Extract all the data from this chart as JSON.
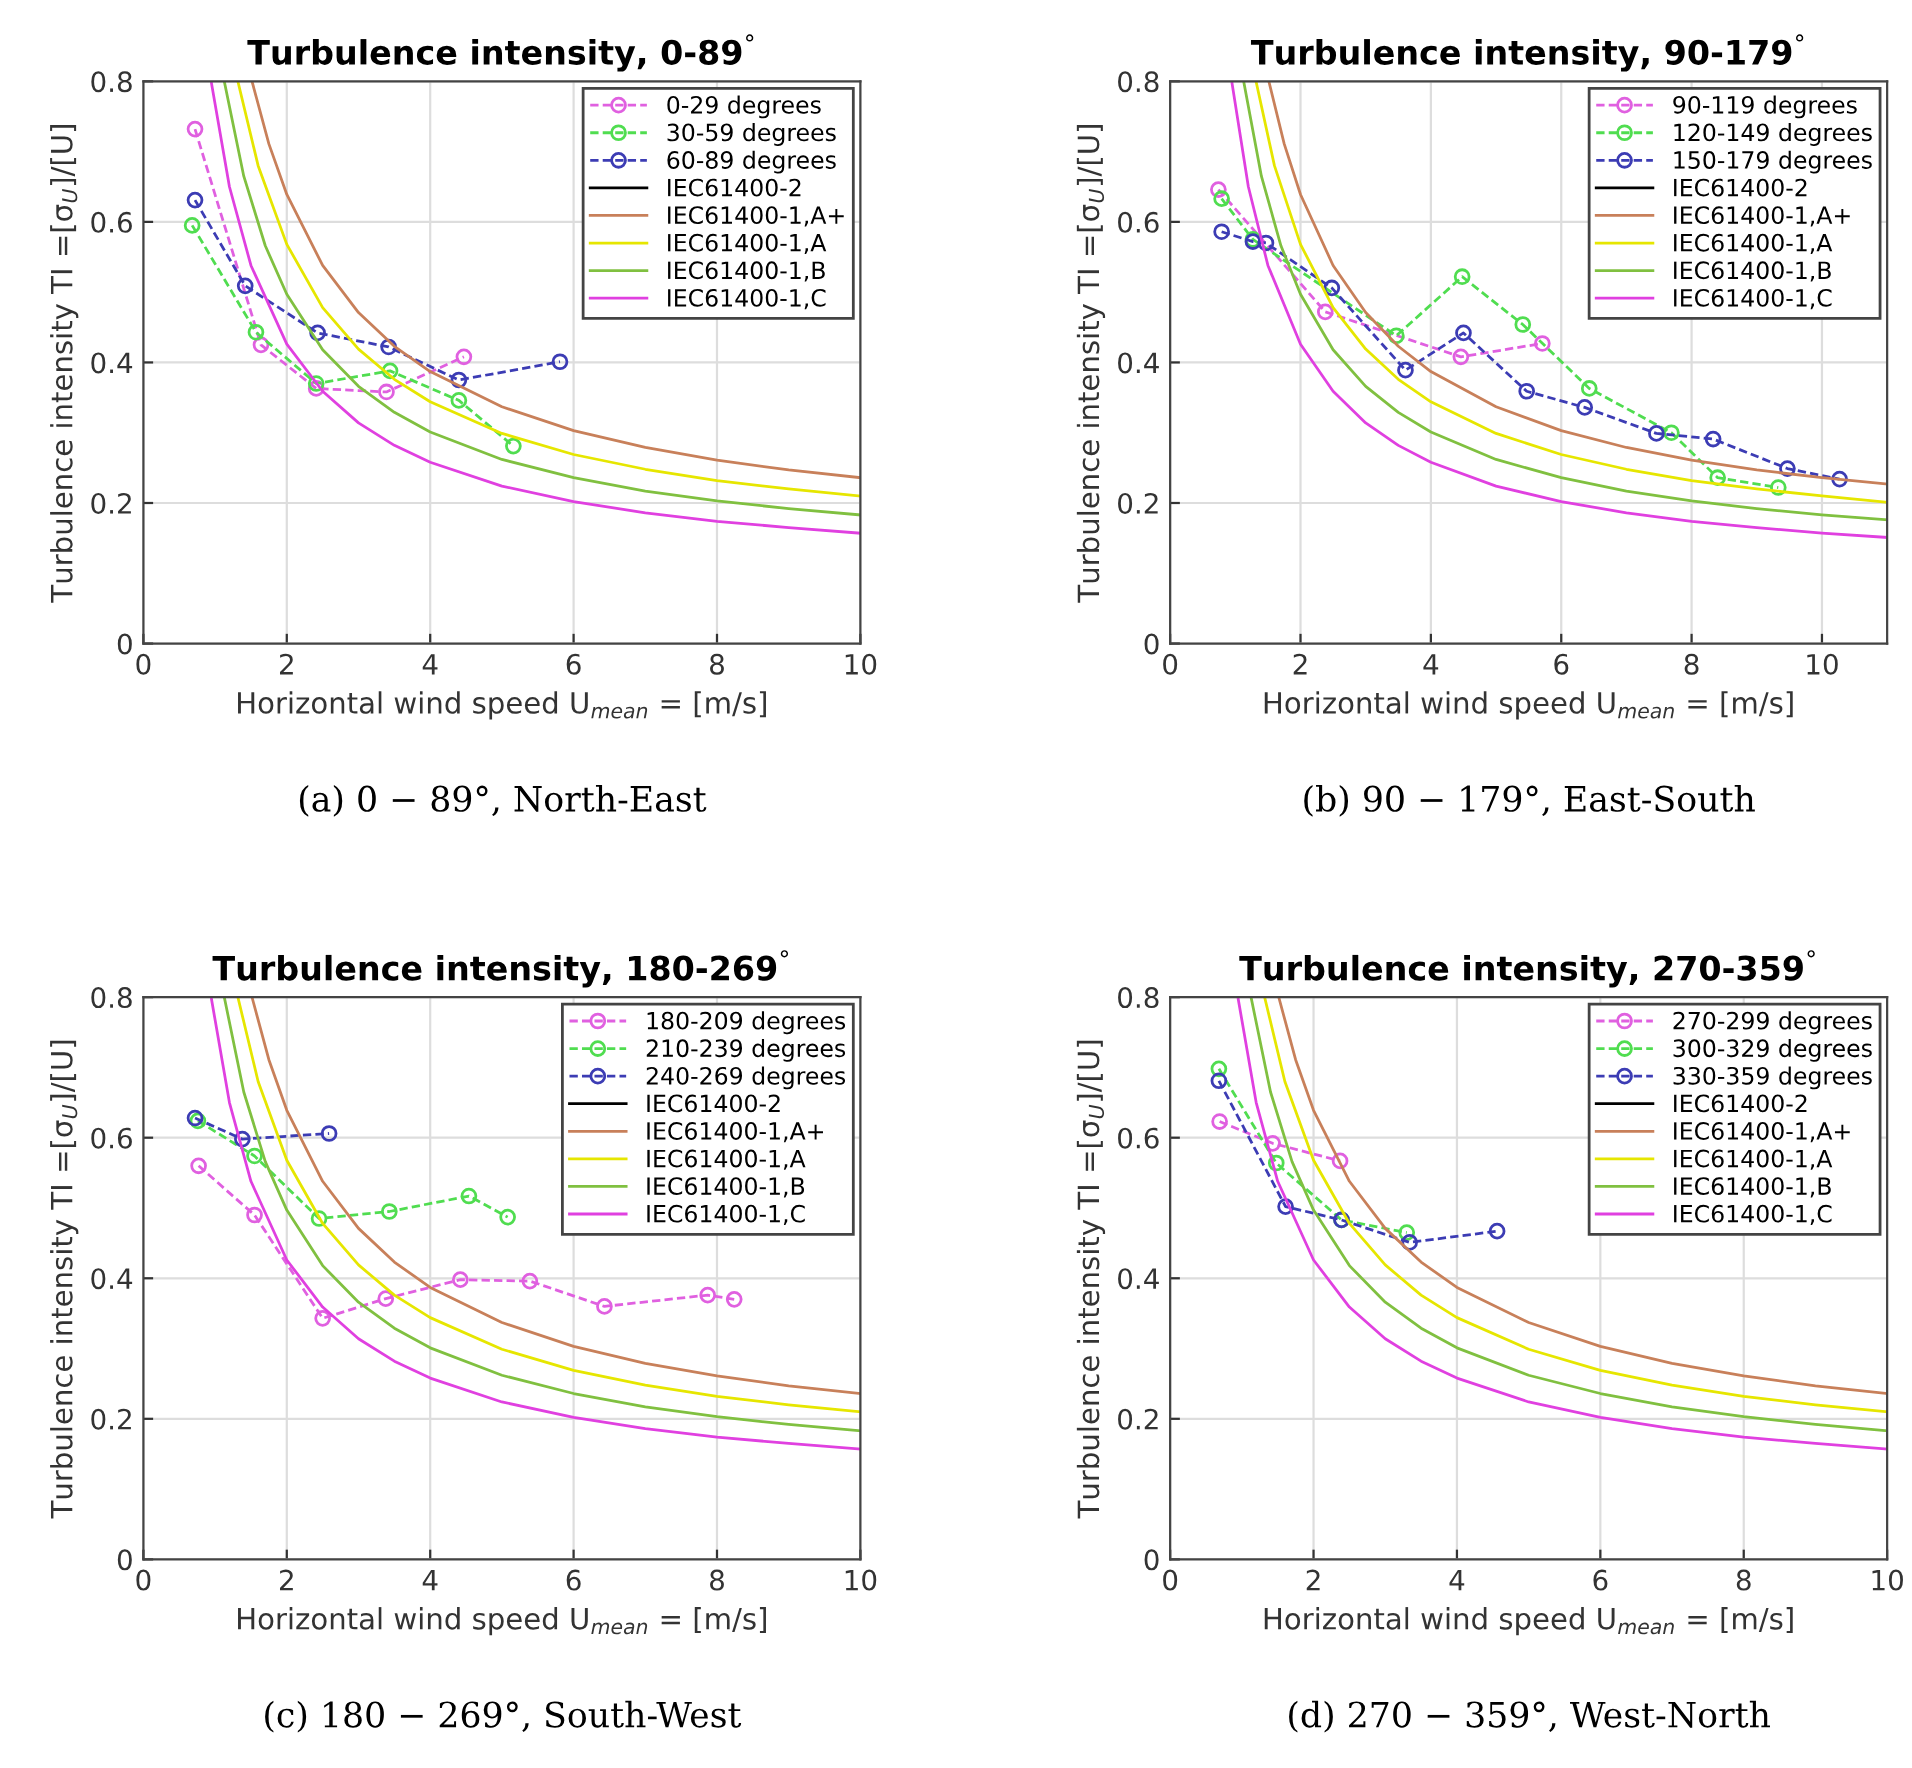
{
  "chart_data": [
    {
      "type": "line",
      "title": "Turbulence intensity, 0-89$^{°}$",
      "xlabel": "Horizontal wind speed U$_{mean}$ = [m/s]",
      "ylabel": "Turbulence intensity TI =[σ$_{U}$]/[U]",
      "annotations": [
        "(a) 0 − 89°, North-East"
      ],
      "xlim": [
        0,
        10
      ],
      "xticks": [
        0,
        2,
        4,
        6,
        8,
        10
      ],
      "ylim": [
        0,
        0.8
      ],
      "yticks": [
        0,
        0.2,
        0.4,
        0.6,
        0.8
      ],
      "grid": true,
      "legend": "top right",
      "series": [
        {
          "name": "0-29 degrees",
          "color": "#e060e0",
          "marker": "circle",
          "line_style": "dashed",
          "x": [
            0.72,
            1.64,
            2.41,
            3.39,
            4.47
          ],
          "values": [
            0.732,
            0.425,
            0.363,
            0.358,
            0.408
          ]
        },
        {
          "name": "30-59 degrees",
          "color": "#50dd50",
          "marker": "circle",
          "line_style": "dashed",
          "x": [
            0.68,
            1.57,
            2.41,
            3.44,
            4.4,
            5.16
          ],
          "values": [
            0.595,
            0.443,
            0.37,
            0.388,
            0.346,
            0.281
          ]
        },
        {
          "name": "60-89 degrees",
          "color": "#3c3cb4",
          "marker": "circle",
          "line_style": "dashed",
          "x": [
            0.72,
            1.42,
            2.43,
            3.42,
            4.4,
            5.81
          ],
          "values": [
            0.631,
            0.509,
            0.442,
            0.422,
            0.375,
            0.401
          ]
        },
        {
          "name": "IEC61400-2",
          "color": "#000000",
          "line_style": "solid"
        },
        {
          "name": "IEC61400-1,A+",
          "color": "#c8805a",
          "line_style": "solid",
          "x": [
            1.52,
            1.75,
            2,
            2.5,
            3,
            3.5,
            4,
            5,
            6,
            7,
            8,
            9,
            10
          ],
          "values": [
            0.798,
            0.711,
            0.639,
            0.538,
            0.471,
            0.423,
            0.387,
            0.337,
            0.303,
            0.279,
            0.261,
            0.247,
            0.236
          ]
        },
        {
          "name": "IEC61400-1,A",
          "color": "#e6e600",
          "line_style": "solid",
          "x": [
            1.32,
            1.6,
            2,
            2.5,
            3,
            3.5,
            4,
            5,
            6,
            7,
            8,
            9,
            10
          ],
          "values": [
            0.799,
            0.68,
            0.568,
            0.478,
            0.419,
            0.376,
            0.344,
            0.299,
            0.269,
            0.248,
            0.232,
            0.22,
            0.21
          ]
        },
        {
          "name": "IEC61400-1,B",
          "color": "#80c040",
          "line_style": "solid",
          "x": [
            1.13,
            1.4,
            1.7,
            2,
            2.5,
            3,
            3.5,
            4,
            5,
            6,
            7,
            8,
            9,
            10
          ],
          "values": [
            0.799,
            0.665,
            0.566,
            0.497,
            0.418,
            0.366,
            0.329,
            0.301,
            0.262,
            0.236,
            0.217,
            0.203,
            0.192,
            0.183
          ]
        },
        {
          "name": "IEC61400-1,C",
          "color": "#e040e0",
          "line_style": "solid",
          "x": [
            0.95,
            1.2,
            1.5,
            2,
            2.5,
            3,
            3.5,
            4,
            5,
            6,
            7,
            8,
            9,
            10
          ],
          "values": [
            0.797,
            0.65,
            0.538,
            0.426,
            0.359,
            0.314,
            0.282,
            0.258,
            0.224,
            0.202,
            0.186,
            0.174,
            0.165,
            0.157
          ]
        }
      ]
    },
    {
      "type": "line",
      "title": "Turbulence intensity, 90-179$^{°}$",
      "xlabel": "Horizontal wind speed U$_{mean}$ = [m/s]",
      "ylabel": "Turbulence intensity TI =[σ$_{U}$]/[U]",
      "annotations": [
        "(b) 90 − 179°, East-South"
      ],
      "xlim": [
        0,
        11
      ],
      "xticks": [
        0,
        2,
        4,
        6,
        8,
        10
      ],
      "ylim": [
        0,
        0.8
      ],
      "yticks": [
        0,
        0.2,
        0.4,
        0.6,
        0.8
      ],
      "grid": true,
      "legend": "top right",
      "series": [
        {
          "name": "90-119 degrees",
          "color": "#e060e0",
          "marker": "circle",
          "line_style": "dashed",
          "x": [
            0.74,
            2.38,
            4.46,
            5.71
          ],
          "values": [
            0.646,
            0.472,
            0.408,
            0.427
          ]
        },
        {
          "name": "120-149 degrees",
          "color": "#50dd50",
          "marker": "circle",
          "line_style": "dashed",
          "x": [
            0.79,
            1.27,
            3.47,
            4.48,
            5.41,
            6.43,
            7.69,
            8.4,
            9.33
          ],
          "values": [
            0.633,
            0.575,
            0.438,
            0.522,
            0.454,
            0.363,
            0.3,
            0.236,
            0.222
          ]
        },
        {
          "name": "150-179 degrees",
          "color": "#3c3cb4",
          "marker": "circle",
          "line_style": "dashed",
          "x": [
            0.79,
            1.27,
            1.47,
            2.48,
            3.61,
            4.5,
            5.47,
            6.36,
            7.46,
            8.33,
            9.47,
            10.27
          ],
          "values": [
            0.586,
            0.572,
            0.57,
            0.506,
            0.389,
            0.442,
            0.359,
            0.336,
            0.299,
            0.291,
            0.249,
            0.234
          ]
        },
        {
          "name": "IEC61400-2",
          "color": "#000000",
          "line_style": "solid"
        },
        {
          "name": "IEC61400-1,A+",
          "color": "#c8805a",
          "line_style": "solid",
          "x": [
            1.52,
            1.75,
            2,
            2.5,
            3,
            3.5,
            4,
            5,
            6,
            7,
            8,
            9,
            10,
            11
          ],
          "values": [
            0.798,
            0.711,
            0.639,
            0.538,
            0.471,
            0.423,
            0.387,
            0.337,
            0.303,
            0.279,
            0.261,
            0.247,
            0.236,
            0.227
          ]
        },
        {
          "name": "IEC61400-1,A",
          "color": "#e6e600",
          "line_style": "solid",
          "x": [
            1.32,
            1.6,
            2,
            2.5,
            3,
            3.5,
            4,
            5,
            6,
            7,
            8,
            9,
            10,
            11
          ],
          "values": [
            0.799,
            0.68,
            0.568,
            0.478,
            0.419,
            0.376,
            0.344,
            0.299,
            0.269,
            0.248,
            0.232,
            0.22,
            0.21,
            0.201
          ]
        },
        {
          "name": "IEC61400-1,B",
          "color": "#80c040",
          "line_style": "solid",
          "x": [
            1.13,
            1.4,
            1.7,
            2,
            2.5,
            3,
            3.5,
            4,
            5,
            6,
            7,
            8,
            9,
            10,
            11
          ],
          "values": [
            0.799,
            0.665,
            0.566,
            0.497,
            0.418,
            0.366,
            0.329,
            0.301,
            0.262,
            0.236,
            0.217,
            0.203,
            0.192,
            0.183,
            0.176
          ]
        },
        {
          "name": "IEC61400-1,C",
          "color": "#e040e0",
          "line_style": "solid",
          "x": [
            0.95,
            1.2,
            1.5,
            2,
            2.5,
            3,
            3.5,
            4,
            5,
            6,
            7,
            8,
            9,
            10,
            11
          ],
          "values": [
            0.797,
            0.65,
            0.538,
            0.426,
            0.359,
            0.314,
            0.282,
            0.258,
            0.224,
            0.202,
            0.186,
            0.174,
            0.165,
            0.157,
            0.151
          ]
        }
      ]
    },
    {
      "type": "line",
      "title": "Turbulence intensity, 180-269$^{°}$",
      "xlabel": "Horizontal wind speed U$_{mean}$ = [m/s]",
      "ylabel": "Turbulence intensity TI =[σ$_{U}$]/[U]",
      "annotations": [
        "(c) 180 − 269°, South-West"
      ],
      "xlim": [
        0,
        10
      ],
      "xticks": [
        0,
        2,
        4,
        6,
        8,
        10
      ],
      "ylim": [
        0,
        0.8
      ],
      "yticks": [
        0,
        0.2,
        0.4,
        0.6,
        0.8
      ],
      "grid": true,
      "legend": "top right",
      "series": [
        {
          "name": "180-209 degrees",
          "color": "#e060e0",
          "marker": "circle",
          "line_style": "dashed",
          "x": [
            0.77,
            1.55,
            2.5,
            3.38,
            4.42,
            5.39,
            6.43,
            7.87,
            8.24
          ],
          "values": [
            0.56,
            0.49,
            0.343,
            0.371,
            0.398,
            0.396,
            0.36,
            0.376,
            0.37
          ]
        },
        {
          "name": "210-239 degrees",
          "color": "#50dd50",
          "marker": "circle",
          "line_style": "dashed",
          "x": [
            0.76,
            1.55,
            2.45,
            3.43,
            4.54,
            5.08
          ],
          "values": [
            0.624,
            0.574,
            0.485,
            0.495,
            0.517,
            0.487
          ]
        },
        {
          "name": "240-269 degrees",
          "color": "#3c3cb4",
          "marker": "circle",
          "line_style": "dashed",
          "x": [
            0.72,
            1.38,
            2.59
          ],
          "values": [
            0.628,
            0.598,
            0.606
          ]
        },
        {
          "name": "IEC61400-2",
          "color": "#000000",
          "line_style": "solid"
        },
        {
          "name": "IEC61400-1,A+",
          "color": "#c8805a",
          "line_style": "solid",
          "x": [
            1.52,
            1.75,
            2,
            2.5,
            3,
            3.5,
            4,
            5,
            6,
            7,
            8,
            9,
            10
          ],
          "values": [
            0.798,
            0.711,
            0.639,
            0.538,
            0.471,
            0.423,
            0.387,
            0.337,
            0.303,
            0.279,
            0.261,
            0.247,
            0.236
          ]
        },
        {
          "name": "IEC61400-1,A",
          "color": "#e6e600",
          "line_style": "solid",
          "x": [
            1.32,
            1.6,
            2,
            2.5,
            3,
            3.5,
            4,
            5,
            6,
            7,
            8,
            9,
            10
          ],
          "values": [
            0.799,
            0.68,
            0.568,
            0.478,
            0.419,
            0.376,
            0.344,
            0.299,
            0.269,
            0.248,
            0.232,
            0.22,
            0.21
          ]
        },
        {
          "name": "IEC61400-1,B",
          "color": "#80c040",
          "line_style": "solid",
          "x": [
            1.13,
            1.4,
            1.7,
            2,
            2.5,
            3,
            3.5,
            4,
            5,
            6,
            7,
            8,
            9,
            10
          ],
          "values": [
            0.799,
            0.665,
            0.566,
            0.497,
            0.418,
            0.366,
            0.329,
            0.301,
            0.262,
            0.236,
            0.217,
            0.203,
            0.192,
            0.183
          ]
        },
        {
          "name": "IEC61400-1,C",
          "color": "#e040e0",
          "line_style": "solid",
          "x": [
            0.95,
            1.2,
            1.5,
            2,
            2.5,
            3,
            3.5,
            4,
            5,
            6,
            7,
            8,
            9,
            10
          ],
          "values": [
            0.797,
            0.65,
            0.538,
            0.426,
            0.359,
            0.314,
            0.282,
            0.258,
            0.224,
            0.202,
            0.186,
            0.174,
            0.165,
            0.157
          ]
        }
      ]
    },
    {
      "type": "line",
      "title": "Turbulence intensity, 270-359$^{°}$",
      "xlabel": "Horizontal wind speed U$_{mean}$ = [m/s]",
      "ylabel": "Turbulence intensity TI =[σ$_{U}$]/[U]",
      "annotations": [
        "(d) 270 − 359°, West-North"
      ],
      "xlim": [
        0,
        10
      ],
      "xticks": [
        0,
        2,
        4,
        6,
        8,
        10
      ],
      "ylim": [
        0,
        0.8
      ],
      "yticks": [
        0,
        0.2,
        0.4,
        0.6,
        0.8
      ],
      "grid": true,
      "legend": "top right",
      "series": [
        {
          "name": "270-299 degrees",
          "color": "#e060e0",
          "marker": "circle",
          "line_style": "dashed",
          "x": [
            0.69,
            1.43,
            2.37
          ],
          "values": [
            0.623,
            0.592,
            0.567
          ]
        },
        {
          "name": "300-329 degrees",
          "color": "#50dd50",
          "marker": "circle",
          "line_style": "dashed",
          "x": [
            0.68,
            1.48,
            2.39,
            3.3
          ],
          "values": [
            0.698,
            0.564,
            0.483,
            0.465
          ]
        },
        {
          "name": "330-359 degrees",
          "color": "#3c3cb4",
          "marker": "circle",
          "line_style": "dashed",
          "x": [
            0.68,
            1.61,
            2.39,
            3.34,
            4.56
          ],
          "values": [
            0.681,
            0.502,
            0.483,
            0.451,
            0.467
          ]
        },
        {
          "name": "IEC61400-2",
          "color": "#000000",
          "line_style": "solid"
        },
        {
          "name": "IEC61400-1,A+",
          "color": "#c8805a",
          "line_style": "solid",
          "x": [
            1.52,
            1.75,
            2,
            2.5,
            3,
            3.5,
            4,
            5,
            6,
            7,
            8,
            9,
            10
          ],
          "values": [
            0.798,
            0.711,
            0.639,
            0.538,
            0.471,
            0.423,
            0.387,
            0.337,
            0.303,
            0.279,
            0.261,
            0.247,
            0.236
          ]
        },
        {
          "name": "IEC61400-1,A",
          "color": "#e6e600",
          "line_style": "solid",
          "x": [
            1.32,
            1.6,
            2,
            2.5,
            3,
            3.5,
            4,
            5,
            6,
            7,
            8,
            9,
            10
          ],
          "values": [
            0.799,
            0.68,
            0.568,
            0.478,
            0.419,
            0.376,
            0.344,
            0.299,
            0.269,
            0.248,
            0.232,
            0.22,
            0.21
          ]
        },
        {
          "name": "IEC61400-1,B",
          "color": "#80c040",
          "line_style": "solid",
          "x": [
            1.13,
            1.4,
            1.7,
            2,
            2.5,
            3,
            3.5,
            4,
            5,
            6,
            7,
            8,
            9,
            10
          ],
          "values": [
            0.799,
            0.665,
            0.566,
            0.497,
            0.418,
            0.366,
            0.329,
            0.301,
            0.262,
            0.236,
            0.217,
            0.203,
            0.192,
            0.183
          ]
        },
        {
          "name": "IEC61400-1,C",
          "color": "#e040e0",
          "line_style": "solid",
          "x": [
            0.95,
            1.2,
            1.5,
            2,
            2.5,
            3,
            3.5,
            4,
            5,
            6,
            7,
            8,
            9,
            10
          ],
          "values": [
            0.797,
            0.65,
            0.538,
            0.426,
            0.359,
            0.314,
            0.282,
            0.258,
            0.224,
            0.202,
            0.186,
            0.174,
            0.165,
            0.157
          ]
        }
      ]
    }
  ]
}
